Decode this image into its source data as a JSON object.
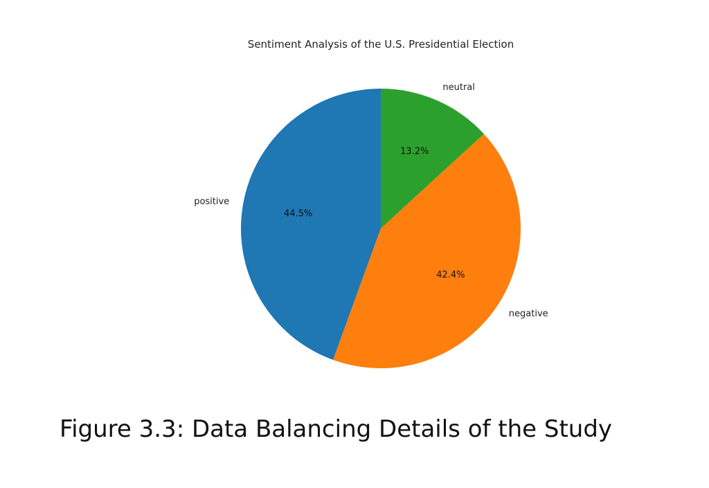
{
  "caption": "Figure 3.3: Data Balancing Details of the Study",
  "chart_data": {
    "type": "pie",
    "title": "Sentiment Analysis of the U.S. Presidential Election",
    "labels": [
      "positive",
      "negative",
      "neutral"
    ],
    "values": [
      44.5,
      42.4,
      13.2
    ],
    "value_labels": [
      "44.5%",
      "42.4%",
      "13.2%"
    ],
    "colors": [
      "#1f77b4",
      "#ff7f0e",
      "#2ca02c"
    ],
    "start_angle_deg": 90,
    "direction": "counterclockwise",
    "legend": "none"
  }
}
